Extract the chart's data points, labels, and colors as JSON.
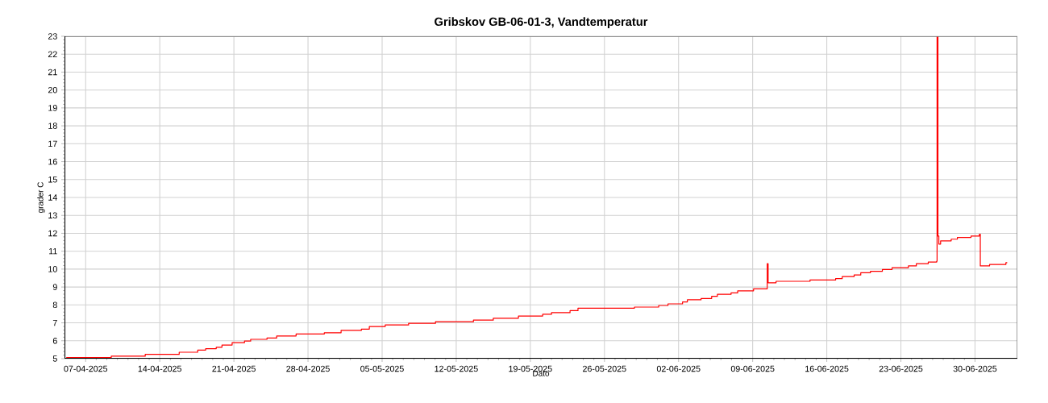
{
  "chart_data": {
    "type": "step",
    "title": "Gribskov GB-06-01-3, Vandtemperatur",
    "xlabel": "Dato",
    "ylabel": "grader C",
    "x": [
      "2025-04-05T04:00",
      "2025-04-09T10:00",
      "2025-04-12T15:00",
      "2025-04-15T20:00",
      "2025-04-17T14:00",
      "2025-04-18T08:00",
      "2025-04-19T08:00",
      "2025-04-19T21:00",
      "2025-04-20T20:00",
      "2025-04-22T00:00",
      "2025-04-22T14:00",
      "2025-04-24T03:00",
      "2025-04-25T01:00",
      "2025-04-26T21:00",
      "2025-04-29T13:00",
      "2025-05-01T03:00",
      "2025-05-03T01:00",
      "2025-05-03T19:00",
      "2025-05-05T07:00",
      "2025-05-07T12:00",
      "2025-05-10T01:00",
      "2025-05-13T15:00",
      "2025-05-15T12:00",
      "2025-05-17T21:00",
      "2025-05-20T04:00",
      "2025-05-21T00:00",
      "2025-05-22T18:00",
      "2025-05-23T12:00",
      "2025-05-28T20:00",
      "2025-05-31T03:00",
      "2025-06-01T00:00",
      "2025-06-02T09:00",
      "2025-06-02T20:00",
      "2025-06-04T03:00",
      "2025-06-05T03:00",
      "2025-06-05T16:00",
      "2025-06-06T23:00",
      "2025-06-07T14:00",
      "2025-06-09T02:00",
      "2025-06-10T09:00",
      "2025-06-10T11:00",
      "2025-06-11T05:00",
      "2025-06-14T10:00",
      "2025-06-16T20:00",
      "2025-06-17T11:00",
      "2025-06-18T14:00",
      "2025-06-19T05:00",
      "2025-06-20T03:00",
      "2025-06-21T06:00",
      "2025-06-22T04:00",
      "2025-06-23T17:00",
      "2025-06-24T11:00",
      "2025-06-25T14:00",
      "2025-06-26T09:00",
      "2025-06-26T10:00",
      "2025-06-26T12:00",
      "2025-06-26T14:00",
      "2025-06-26T18:00",
      "2025-06-27T18:00",
      "2025-06-28T08:00",
      "2025-06-29T15:00",
      "2025-06-30T10:00",
      "2025-06-30T12:00",
      "2025-07-01T09:00",
      "2025-07-02T22:00",
      "2025-07-03T01:00"
    ],
    "series": [
      {
        "color": "#ff0000",
        "values": [
          5.06,
          5.14,
          5.24,
          5.36,
          5.48,
          5.56,
          5.64,
          5.76,
          5.89,
          5.98,
          6.08,
          6.15,
          6.27,
          6.38,
          6.45,
          6.58,
          6.65,
          6.79,
          6.88,
          6.97,
          7.06,
          7.15,
          7.26,
          7.38,
          7.48,
          7.57,
          7.68,
          7.82,
          7.88,
          7.97,
          8.06,
          8.17,
          8.29,
          8.36,
          8.48,
          8.59,
          8.67,
          8.79,
          8.9,
          10.3,
          9.24,
          9.32,
          9.39,
          9.47,
          9.58,
          9.67,
          9.8,
          9.88,
          9.98,
          10.08,
          10.18,
          10.3,
          10.39,
          10.44,
          23,
          11.85,
          11.4,
          11.58,
          11.67,
          11.77,
          11.85,
          11.95,
          10.18,
          10.26,
          10.36,
          10.36
        ]
      }
    ],
    "xlim": [
      "2025-04-05",
      "2025-07-04"
    ],
    "ylim": [
      5,
      23
    ],
    "xticks": [
      {
        "value": "2025-04-07",
        "label": "07-04-2025"
      },
      {
        "value": "2025-04-14",
        "label": "14-04-2025"
      },
      {
        "value": "2025-04-21",
        "label": "21-04-2025"
      },
      {
        "value": "2025-04-28",
        "label": "28-04-2025"
      },
      {
        "value": "2025-05-05",
        "label": "05-05-2025"
      },
      {
        "value": "2025-05-12",
        "label": "12-05-2025"
      },
      {
        "value": "2025-05-19",
        "label": "19-05-2025"
      },
      {
        "value": "2025-05-26",
        "label": "26-05-2025"
      },
      {
        "value": "2025-06-02",
        "label": "02-06-2025"
      },
      {
        "value": "2025-06-09",
        "label": "09-06-2025"
      },
      {
        "value": "2025-06-16",
        "label": "16-06-2025"
      },
      {
        "value": "2025-06-23",
        "label": "23-06-2025"
      },
      {
        "value": "2025-06-30",
        "label": "30-06-2025"
      }
    ],
    "yticks": [
      5,
      6,
      7,
      8,
      9,
      10,
      11,
      12,
      13,
      14,
      15,
      16,
      17,
      18,
      19,
      20,
      21,
      22,
      23
    ],
    "grid": true
  }
}
